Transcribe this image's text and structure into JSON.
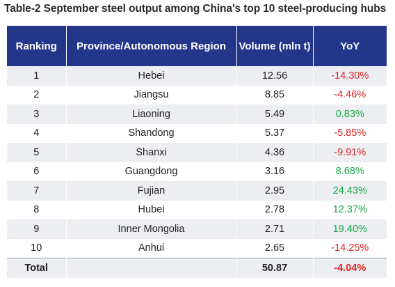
{
  "title": "Table-2 September steel output among China's top 10 steel-producing hubs",
  "headers": [
    "Ranking",
    "Province/Autonomous Region",
    "Volume (mln t)",
    "YoY"
  ],
  "rows": [
    {
      "rank": "1",
      "region": "Hebei",
      "volume": "12.56",
      "yoy": "-14.30%"
    },
    {
      "rank": "2",
      "region": "Jiangsu",
      "volume": "8.85",
      "yoy": "-4.46%"
    },
    {
      "rank": "3",
      "region": "Liaoning",
      "volume": "5.49",
      "yoy": "0.83%"
    },
    {
      "rank": "4",
      "region": "Shandong",
      "volume": "5.37",
      "yoy": "-5.85%"
    },
    {
      "rank": "5",
      "region": "Shanxi",
      "volume": "4.36",
      "yoy": "-9.91%"
    },
    {
      "rank": "6",
      "region": "Guangdong",
      "volume": "3.16",
      "yoy": "8.68%"
    },
    {
      "rank": "7",
      "region": "Fujian",
      "volume": "2.95",
      "yoy": "24.43%"
    },
    {
      "rank": "8",
      "region": "Hubei",
      "volume": "2.78",
      "yoy": "12.37%"
    },
    {
      "rank": "9",
      "region": "Inner Mongolia",
      "volume": "2.71",
      "yoy": "19.40%"
    },
    {
      "rank": "10",
      "region": "Anhui",
      "volume": "2.65",
      "yoy": "-14.25%"
    }
  ],
  "total": {
    "label": "Total",
    "region": "",
    "volume": "50.87",
    "yoy": "-4.04%"
  },
  "colors": {
    "header_bg": "#24368a",
    "negative": "#e02424",
    "positive": "#18a84a",
    "stripe": "#eceef2"
  }
}
